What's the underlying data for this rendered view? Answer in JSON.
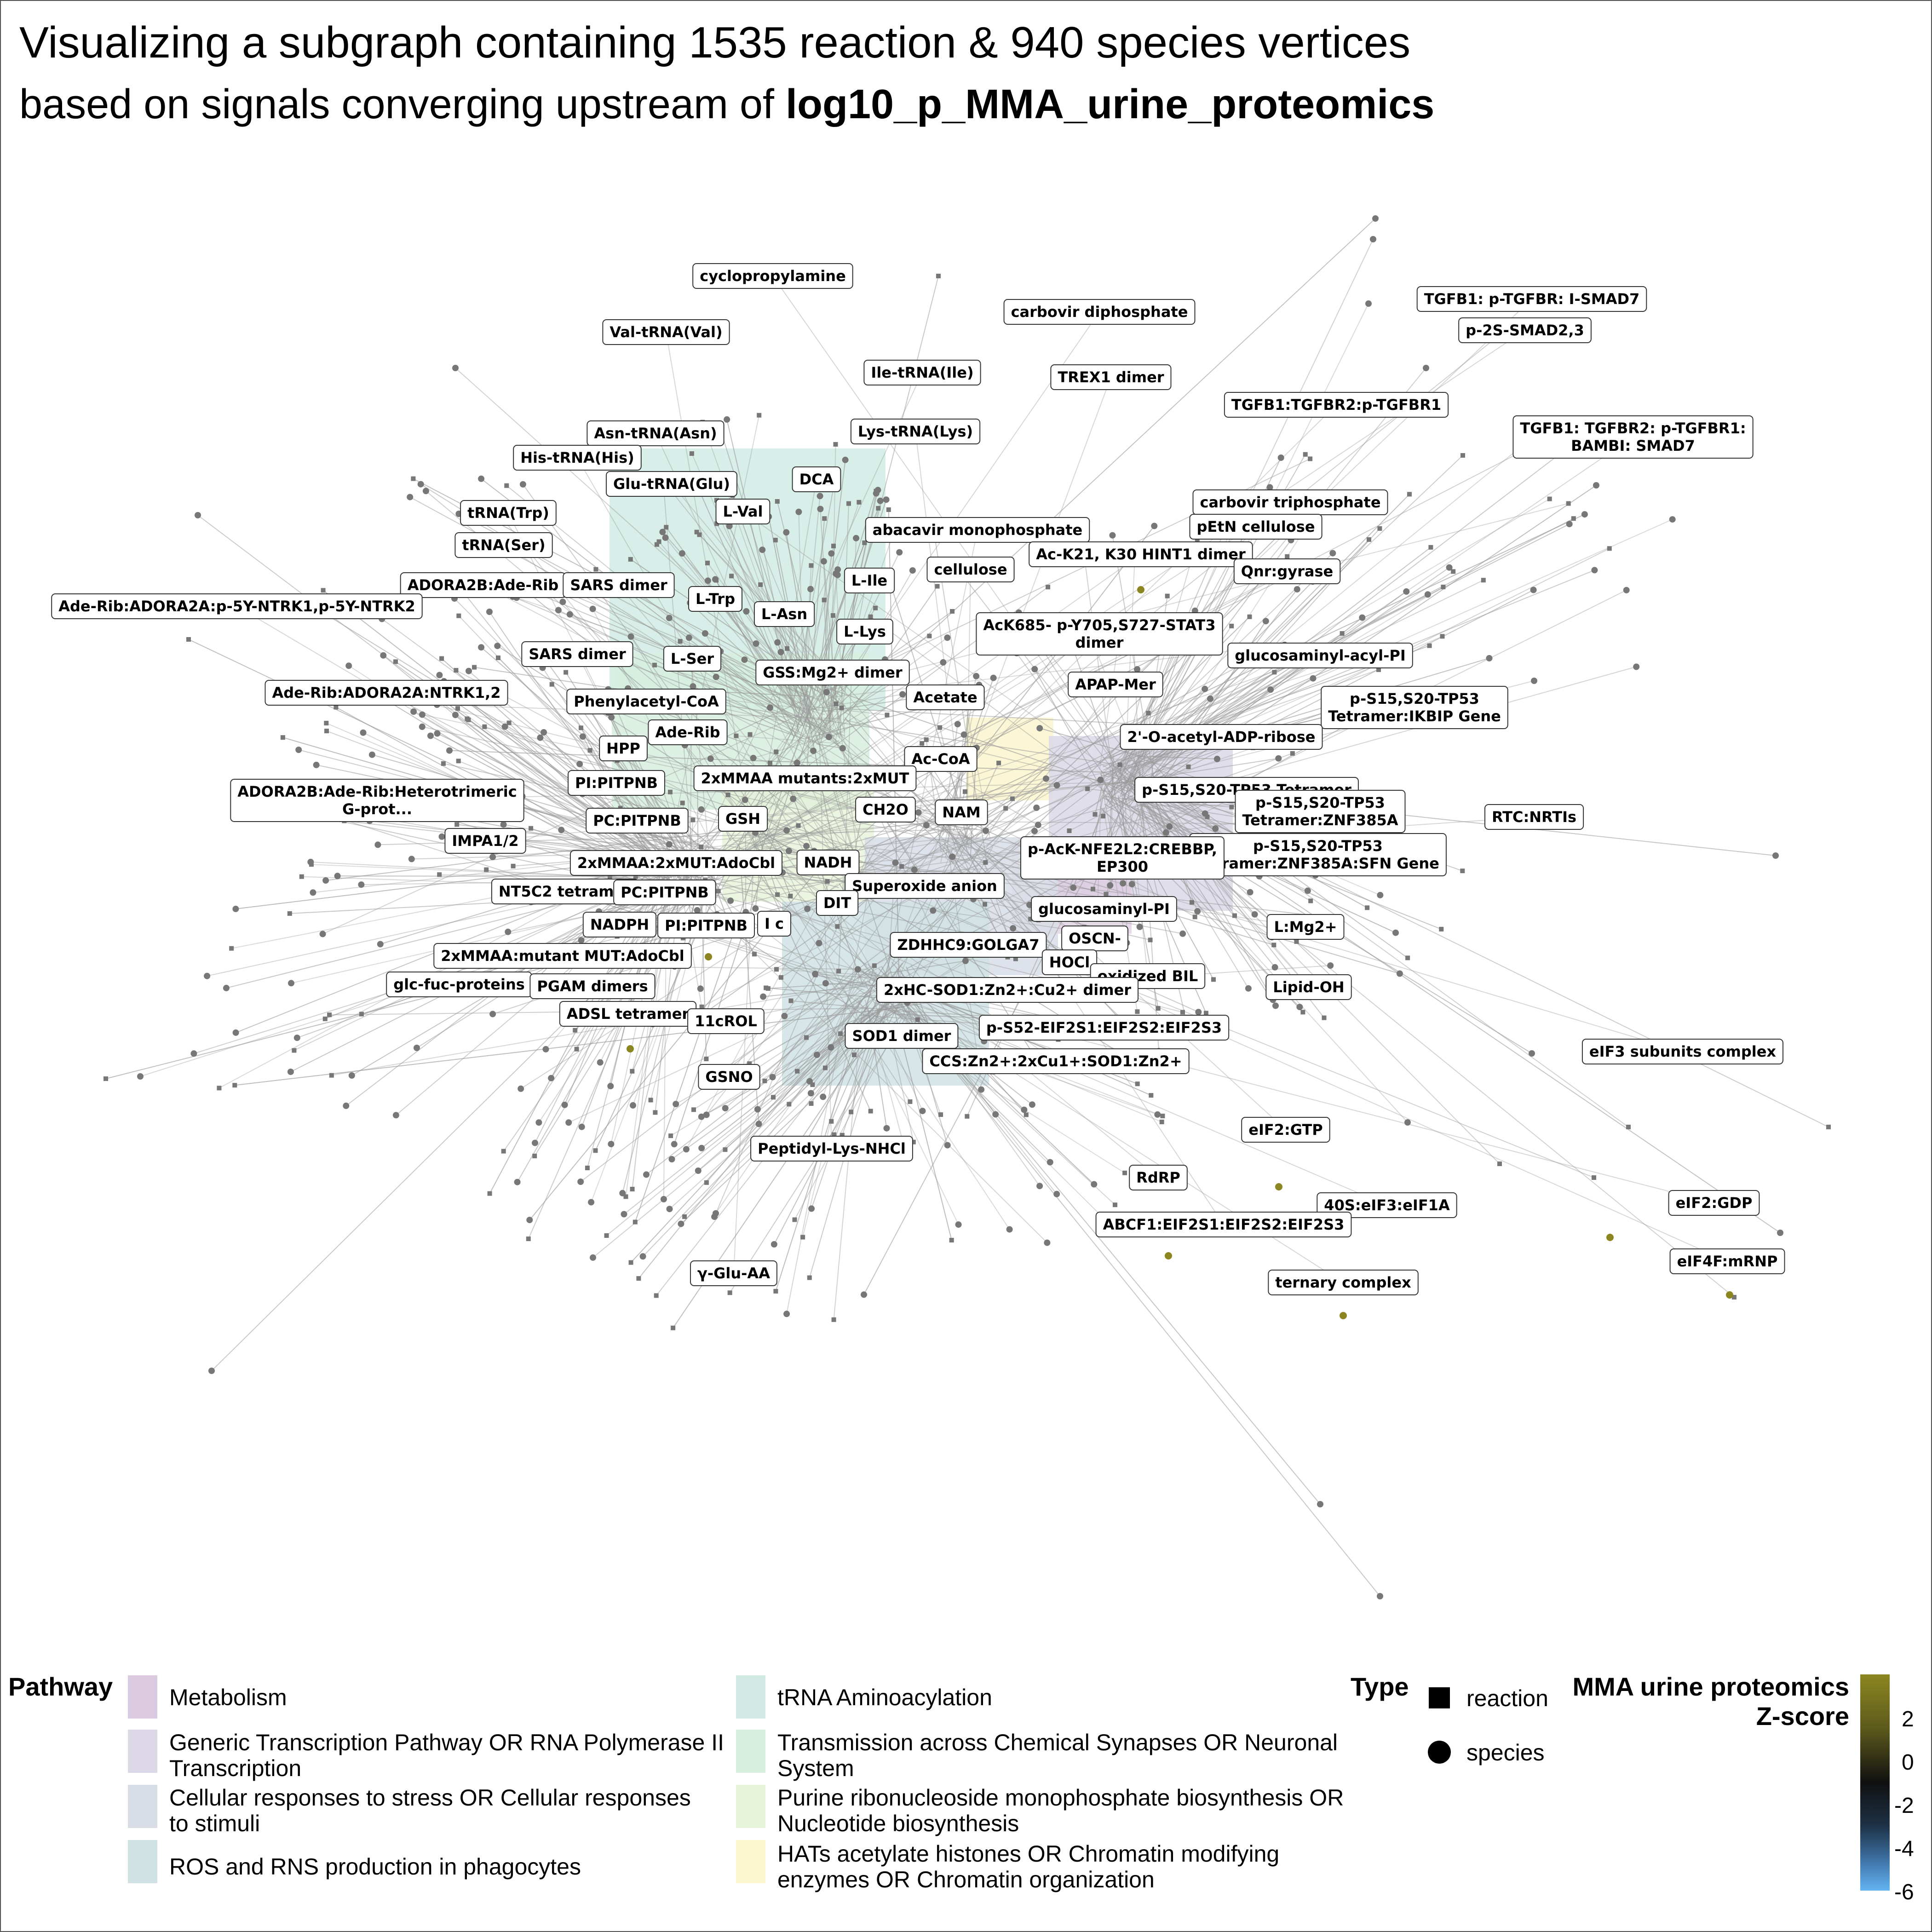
{
  "title": {
    "line1": "Visualizing a subgraph containing 1535 reaction & 940 species vertices",
    "line2_prefix": "based on signals converging upstream of ",
    "line2_bold": "log10_p_MMA_urine_proteomics"
  },
  "network": {
    "edge_color": "#9a9a9a",
    "node_color": "#777777",
    "labels": [
      "cyclopropylamine",
      "carbovir diphosphate",
      "Val-tRNA(Val)",
      "TGFB1: p-TGFBR: I-SMAD7",
      "p-2S-SMAD2,3",
      "Ile-tRNA(Ile)",
      "TREX1 dimer",
      "TGFB1:TGFBR2:p-TGFBR1",
      "TGFB1: TGFBR2: p-TGFBR1:\nBAMBI: SMAD7",
      "Asn-tRNA(Asn)",
      "Lys-tRNA(Lys)",
      "His-tRNA(His)",
      "DCA",
      "Glu-tRNA(Glu)",
      "carbovir triphosphate",
      "tRNA(Trp)",
      "L-Val",
      "abacavir monophosphate",
      "pEtN cellulose",
      "tRNA(Ser)",
      "Ac-K21, K30 HINT1 dimer",
      "ADORA2B:Ade-Rib",
      "SARS dimer",
      "cellulose",
      "L-Ile",
      "Qnr:gyrase",
      "Ade-Rib:ADORA2A:p-5Y-NTRK1,p-5Y-NTRK2",
      "L-Trp",
      "L-Asn",
      "AcK685- p-Y705,S727-STAT3\ndimer",
      "L-Lys",
      "SARS dimer",
      "L-Ser",
      "glucosaminyl-acyl-PI",
      "GSS:Mg2+ dimer",
      "APAP-Mer",
      "Ade-Rib:ADORA2A:NTRK1,2",
      "p-S15,S20-TP53\nTetramer:IKBIP Gene",
      "Phenylacetyl-CoA",
      "Acetate",
      "2'-O-acetyl-ADP-ribose",
      "Ade-Rib",
      "HPP",
      "Ac-CoA",
      "2xMMAA mutants:2xMUT",
      "PI:PITPNB",
      "p-S15,S20-TP53 Tetramer",
      "ADORA2B:Ade-Rib:Heterotrimeric\nG-prot...",
      "p-S15,S20-TP53\nTetramer:ZNF385A",
      "RTC:NRTIs",
      "CH2O",
      "NAM",
      "PC:PITPNB",
      "GSH",
      "p-S15,S20-TP53\nTetramer:ZNF385A:SFN Gene",
      "p-AcK-NFE2L2:CREBBP,\nEP300",
      "IMPA1/2",
      "2xMMAA:2xMUT:AdoCbl",
      "NADH",
      "NT5C2 tetramer",
      "PC:PITPNB",
      "Superoxide anion",
      "DIT",
      "glucosaminyl-PI",
      "NADPH",
      "PI:PITPNB",
      "I c",
      "L:Mg2+",
      "OSCN-",
      "ZDHHC9:GOLGA7",
      "2xMMAA:mutant MUT:AdoCbl",
      "HOCl",
      "oxidized BIL",
      "glc-fuc-proteins",
      "PGAM dimers",
      "2xHC-SOD1:Zn2+:Cu2+ dimer",
      "Lipid-OH",
      "ADSL tetramer",
      "11cROL",
      "p-S52-EIF2S1:EIF2S2:EIF2S3",
      "SOD1 dimer",
      "eIF3 subunits complex",
      "CCS:Zn2+:2xCu1+:SOD1:Zn2+",
      "GSNO",
      "eIF2:GTP",
      "Peptidyl-Lys-NHCl",
      "RdRP",
      "40S:eIF3:eIF1A",
      "eIF2:GDP",
      "ABCF1:EIF2S1:EIF2S2:EIF2S3",
      "eIF4F:mRNP",
      "ternary complex",
      "γ-Glu-AA"
    ]
  },
  "legend": {
    "pathway_title": "Pathway",
    "pathways": [
      {
        "label": "Metabolism",
        "color": "#dccbe0"
      },
      {
        "label": "Generic Transcription Pathway OR RNA Polymerase II Transcription",
        "color": "#dcd8e8"
      },
      {
        "label": "Cellular responses to stress OR Cellular responses to stimuli",
        "color": "#d8dde6"
      },
      {
        "label": "ROS and RNS production in phagocytes",
        "color": "#d0e2e4"
      },
      {
        "label": "tRNA Aminoacylation",
        "color": "#d1ebe4"
      },
      {
        "label": "Transmission across Chemical Synapses OR Neuronal System",
        "color": "#d6efde"
      },
      {
        "label": "Purine ribonucleoside monophosphate biosynthesis OR Nucleotide biosynthesis",
        "color": "#e6f3d8"
      },
      {
        "label": "HATs acetylate histones OR Chromatin modifying enzymes OR Chromatin organization",
        "color": "#fbf5d0"
      }
    ],
    "type_title": "Type",
    "types": [
      {
        "label": "reaction",
        "shape": "square"
      },
      {
        "label": "species",
        "shape": "circle"
      }
    ],
    "zscore_title_1": "MMA urine proteomics",
    "zscore_title_2": "Z-score",
    "zscore_ticks": [
      "2",
      "0",
      "-2",
      "-4",
      "-6"
    ],
    "zscore_colors": {
      "high": "#8c8620",
      "mid": "#101010",
      "low": "#62b4f4"
    }
  }
}
